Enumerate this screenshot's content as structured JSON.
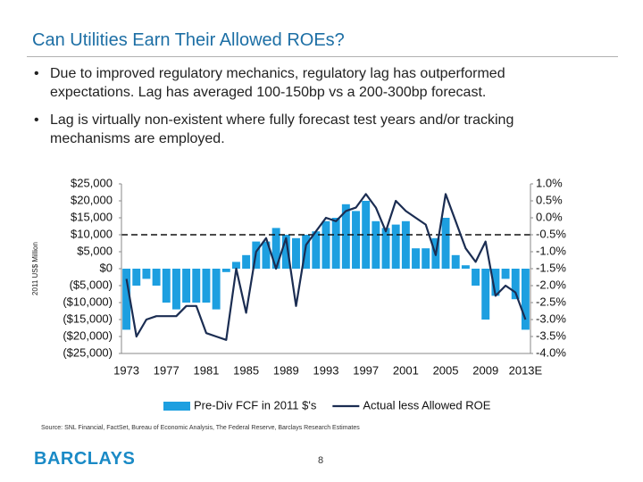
{
  "header": {
    "title": "Can Utilities Earn Their Allowed ROEs?"
  },
  "bullets": [
    "Due to improved regulatory mechanics, regulatory lag has outperformed expectations.  Lag has averaged 100-150bp vs a 200-300bp forecast.",
    "Lag is virtually non-existent where fully forecast test years and/or tracking mechanisms are employed."
  ],
  "chart_data": {
    "type": "combo",
    "y_label": "2011 US$ Million",
    "categories": [
      "1973",
      null,
      null,
      null,
      "1977",
      null,
      null,
      null,
      "1981",
      null,
      null,
      null,
      "1985",
      null,
      null,
      null,
      "1989",
      null,
      null,
      null,
      "1993",
      null,
      null,
      null,
      "1997",
      null,
      null,
      null,
      "2001",
      null,
      null,
      null,
      "2005",
      null,
      null,
      null,
      "2009",
      null,
      null,
      null,
      "2013E"
    ],
    "series": [
      {
        "name": "Pre-Div FCF in 2011 $'s",
        "type": "bar",
        "color": "#1d9fe0",
        "values": [
          -18000,
          -5000,
          -3000,
          -5000,
          -10000,
          -12000,
          -10000,
          -10000,
          -10000,
          -12000,
          -1000,
          2000,
          4000,
          8000,
          8000,
          12000,
          10000,
          9000,
          10000,
          11000,
          14000,
          15000,
          19000,
          17000,
          20000,
          14000,
          12000,
          13000,
          14000,
          6000,
          6000,
          9000,
          15000,
          4000,
          1000,
          -5000,
          -15000,
          -8000,
          -3000,
          -9000,
          -18000
        ]
      },
      {
        "name": "Actual less Allowed ROE",
        "type": "line",
        "axis": "y2",
        "color": "#1b2d52",
        "values": [
          -1.8,
          -3.5,
          -3.0,
          -2.9,
          -2.9,
          -2.9,
          -2.6,
          -2.6,
          -3.4,
          -3.5,
          -3.6,
          -1.5,
          -2.8,
          -1.0,
          -0.6,
          -1.5,
          -0.6,
          -2.6,
          -0.8,
          -0.4,
          0.0,
          -0.1,
          0.2,
          0.3,
          0.7,
          0.3,
          -0.4,
          0.5,
          0.2,
          0.0,
          -0.2,
          -1.1,
          0.7,
          -0.1,
          -0.9,
          -1.3,
          -0.7,
          -2.3,
          -2.0,
          -2.2,
          -3.0
        ]
      }
    ],
    "reference_line": {
      "value": -0.5,
      "axis": "y2"
    },
    "ylim": [
      -25000,
      25000
    ],
    "yticks": [
      {
        "value": 25000,
        "label": "$25,000"
      },
      {
        "value": 20000,
        "label": "$20,000"
      },
      {
        "value": 15000,
        "label": "$15,000"
      },
      {
        "value": 10000,
        "label": "$10,000"
      },
      {
        "value": 5000,
        "label": "$5,000"
      },
      {
        "value": 0,
        "label": "$0"
      },
      {
        "value": -5000,
        "label": "($5,000)"
      },
      {
        "value": -10000,
        "label": "($10,000)"
      },
      {
        "value": -15000,
        "label": "($15,000)"
      },
      {
        "value": -20000,
        "label": "($20,000)"
      },
      {
        "value": -25000,
        "label": "($25,000)"
      }
    ],
    "y2lim": [
      -4.0,
      1.0
    ],
    "y2ticks": [
      {
        "value": 1.0,
        "label": "1.0%"
      },
      {
        "value": 0.5,
        "label": "0.5%"
      },
      {
        "value": 0.0,
        "label": "0.0%"
      },
      {
        "value": -0.5,
        "label": "-0.5%"
      },
      {
        "value": -1.0,
        "label": "-1.0%"
      },
      {
        "value": -1.5,
        "label": "-1.5%"
      },
      {
        "value": -2.0,
        "label": "-2.0%"
      },
      {
        "value": -2.5,
        "label": "-2.5%"
      },
      {
        "value": -3.0,
        "label": "-3.0%"
      },
      {
        "value": -3.5,
        "label": "-3.5%"
      },
      {
        "value": -4.0,
        "label": "-4.0%"
      }
    ],
    "legend": "bottom"
  },
  "source": "Source: SNL Financial, FactSet, Bureau of Economic Analysis, The Federal Reserve, Barclays Research Estimates",
  "logo": "BARCLAYS",
  "page_number": "8"
}
